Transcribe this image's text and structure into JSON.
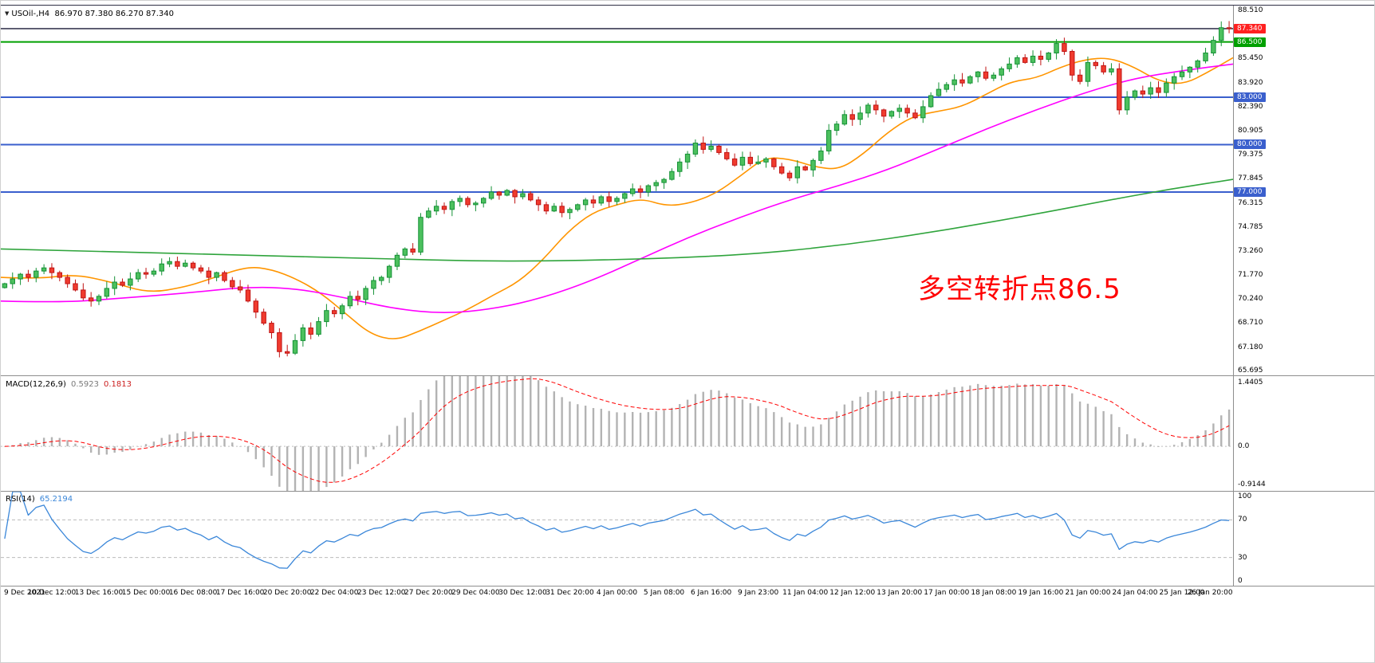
{
  "header": {
    "symbol": "USOil-,H4",
    "ohlc": "86.970 87.380 86.270 87.340"
  },
  "annotation": {
    "text": "多空转折点86.5",
    "color": "#ff0000"
  },
  "colors": {
    "up_fill": "#4cc05e",
    "up_stroke": "#149135",
    "down_fill": "#f03b2e",
    "down_stroke": "#c01414",
    "macd_hist": "#b3b3b3",
    "macd_signal": "#ff0000",
    "rsi_line": "#3b87d9",
    "level_dash": "#bbbbbb",
    "axis_text": "#000000"
  },
  "chart_data": {
    "type": "candlestick",
    "symbol": "USOil-",
    "timeframe": "H4",
    "ohlc_current": {
      "open": 86.97,
      "high": 87.38,
      "low": 86.27,
      "close": 87.34
    },
    "price_range": [
      65.4,
      88.8
    ],
    "price_ticks": [
      "88.510",
      "85.450",
      "83.920",
      "82.390",
      "80.905",
      "79.375",
      "77.845",
      "76.315",
      "74.785",
      "73.260",
      "71.770",
      "70.240",
      "68.710",
      "67.180",
      "65.695"
    ],
    "price_lines": [
      {
        "price": 87.34,
        "label": "87.340",
        "line_color": "#3c3c55",
        "badge_color": "#ff2020",
        "width": 1.6
      },
      {
        "price": 86.5,
        "label": "86.500",
        "line_color": "#00a000",
        "badge_color": "#00a000",
        "width": 2
      },
      {
        "price": 83.0,
        "label": "83.000",
        "line_color": "#3a5fcd",
        "badge_color": "#3a5fcd",
        "width": 2
      },
      {
        "price": 80.0,
        "label": "80.000",
        "line_color": "#3a5fcd",
        "badge_color": "#3a5fcd",
        "width": 2
      },
      {
        "price": 77.0,
        "label": "77.000",
        "line_color": "#3a5fcd",
        "badge_color": "#3a5fcd",
        "width": 2
      }
    ],
    "closes": [
      71.2,
      71.5,
      71.8,
      71.6,
      72.0,
      72.2,
      71.9,
      71.6,
      71.2,
      70.8,
      70.3,
      70.1,
      70.4,
      70.9,
      71.3,
      71.1,
      71.5,
      71.9,
      71.8,
      72.0,
      72.45,
      72.6,
      72.3,
      72.5,
      72.2,
      72.0,
      71.6,
      71.9,
      71.4,
      71.0,
      70.8,
      70.1,
      69.4,
      68.7,
      68.1,
      66.9,
      66.8,
      67.6,
      68.4,
      68.0,
      68.8,
      69.5,
      69.3,
      69.8,
      70.4,
      70.2,
      70.9,
      71.4,
      71.6,
      72.3,
      73.0,
      73.4,
      73.2,
      75.4,
      75.8,
      76.1,
      75.9,
      76.4,
      76.6,
      76.2,
      76.3,
      76.6,
      77.0,
      76.8,
      77.1,
      76.7,
      76.9,
      76.5,
      76.2,
      75.8,
      76.1,
      75.7,
      75.9,
      76.2,
      76.5,
      76.3,
      76.7,
      76.4,
      76.6,
      76.9,
      77.2,
      77.0,
      77.4,
      77.6,
      77.8,
      78.3,
      78.9,
      79.4,
      80.1,
      79.7,
      79.9,
      79.5,
      79.1,
      78.7,
      79.2,
      78.8,
      78.9,
      79.1,
      78.6,
      78.2,
      77.9,
      78.6,
      78.4,
      79.0,
      79.6,
      80.9,
      81.3,
      81.9,
      81.6,
      82.0,
      82.5,
      82.2,
      81.8,
      82.1,
      82.3,
      82.0,
      81.7,
      82.4,
      83.1,
      83.5,
      83.8,
      84.1,
      83.9,
      84.3,
      84.6,
      84.2,
      84.4,
      84.8,
      85.1,
      85.5,
      85.2,
      85.6,
      85.4,
      85.8,
      86.4,
      85.9,
      84.4,
      84.0,
      85.2,
      85.0,
      84.6,
      84.8,
      82.2,
      83.0,
      83.4,
      83.2,
      83.6,
      83.3,
      83.9,
      84.3,
      84.6,
      84.9,
      85.3,
      85.8,
      86.6,
      87.4,
      87.34
    ],
    "ma_lines": [
      {
        "name": "ma-fast",
        "color": "#ff9500",
        "points": [
          [
            0,
            71.6
          ],
          [
            0.03,
            71.5
          ],
          [
            0.06,
            71.8
          ],
          [
            0.09,
            71.3
          ],
          [
            0.12,
            70.6
          ],
          [
            0.15,
            71.0
          ],
          [
            0.17,
            71.5
          ],
          [
            0.2,
            72.3
          ],
          [
            0.22,
            72.1
          ],
          [
            0.24,
            71.5
          ],
          [
            0.26,
            70.6
          ],
          [
            0.28,
            69.3
          ],
          [
            0.3,
            68.0
          ],
          [
            0.32,
            67.6
          ],
          [
            0.34,
            68.2
          ],
          [
            0.36,
            68.9
          ],
          [
            0.38,
            69.6
          ],
          [
            0.4,
            70.5
          ],
          [
            0.42,
            71.3
          ],
          [
            0.44,
            72.7
          ],
          [
            0.46,
            74.5
          ],
          [
            0.48,
            75.7
          ],
          [
            0.5,
            76.2
          ],
          [
            0.52,
            76.6
          ],
          [
            0.54,
            76.1
          ],
          [
            0.56,
            76.3
          ],
          [
            0.58,
            76.9
          ],
          [
            0.6,
            78.0
          ],
          [
            0.62,
            79.2
          ],
          [
            0.64,
            79.1
          ],
          [
            0.66,
            78.6
          ],
          [
            0.68,
            78.4
          ],
          [
            0.7,
            79.4
          ],
          [
            0.72,
            80.8
          ],
          [
            0.74,
            81.8
          ],
          [
            0.76,
            82.1
          ],
          [
            0.78,
            82.4
          ],
          [
            0.8,
            83.2
          ],
          [
            0.82,
            84.0
          ],
          [
            0.84,
            84.2
          ],
          [
            0.86,
            84.9
          ],
          [
            0.88,
            85.4
          ],
          [
            0.9,
            85.5
          ],
          [
            0.92,
            84.9
          ],
          [
            0.94,
            84.0
          ],
          [
            0.96,
            83.8
          ],
          [
            0.98,
            84.6
          ],
          [
            1,
            85.5
          ]
        ]
      },
      {
        "name": "ma-mid",
        "color": "#ff00ff",
        "points": [
          [
            0,
            70.1
          ],
          [
            0.05,
            70.0
          ],
          [
            0.1,
            70.3
          ],
          [
            0.15,
            70.6
          ],
          [
            0.2,
            71.0
          ],
          [
            0.24,
            70.9
          ],
          [
            0.28,
            70.3
          ],
          [
            0.32,
            69.6
          ],
          [
            0.36,
            69.3
          ],
          [
            0.4,
            69.6
          ],
          [
            0.44,
            70.3
          ],
          [
            0.48,
            71.4
          ],
          [
            0.52,
            72.8
          ],
          [
            0.56,
            74.2
          ],
          [
            0.6,
            75.4
          ],
          [
            0.64,
            76.5
          ],
          [
            0.68,
            77.4
          ],
          [
            0.72,
            78.4
          ],
          [
            0.76,
            79.7
          ],
          [
            0.8,
            81.0
          ],
          [
            0.84,
            82.2
          ],
          [
            0.88,
            83.3
          ],
          [
            0.92,
            84.2
          ],
          [
            0.96,
            84.7
          ],
          [
            1,
            85.1
          ]
        ]
      },
      {
        "name": "ma-slow",
        "color": "#2fa43c",
        "points": [
          [
            0,
            73.4
          ],
          [
            0.1,
            73.2
          ],
          [
            0.2,
            73.0
          ],
          [
            0.3,
            72.8
          ],
          [
            0.4,
            72.6
          ],
          [
            0.5,
            72.7
          ],
          [
            0.6,
            73.0
          ],
          [
            0.68,
            73.6
          ],
          [
            0.76,
            74.5
          ],
          [
            0.84,
            75.6
          ],
          [
            0.9,
            76.5
          ],
          [
            0.95,
            77.2
          ],
          [
            1,
            77.8
          ]
        ]
      }
    ],
    "x_labels": [
      "9 Dec 2021",
      "10 Dec 12:00",
      "13 Dec 16:00",
      "15 Dec 00:00",
      "16 Dec 08:00",
      "17 Dec 16:00",
      "20 Dec 20:00",
      "22 Dec 04:00",
      "23 Dec 12:00",
      "27 Dec 20:00",
      "29 Dec 04:00",
      "30 Dec 12:00",
      "31 Dec 20:00",
      "4 Jan 00:00",
      "5 Jan 08:00",
      "6 Jan 16:00",
      "9 Jan 23:00",
      "11 Jan 04:00",
      "12 Jan 12:00",
      "13 Jan 20:00",
      "17 Jan 00:00",
      "18 Jan 08:00",
      "19 Jan 16:00",
      "21 Jan 00:00",
      "24 Jan 04:00",
      "25 Jan 12:00",
      "26 Jan 20:00"
    ],
    "macd": {
      "name": "MACD(12,26,9)",
      "main": "0.5923",
      "signal": "0.1813",
      "fast": 12,
      "slow": 26,
      "signal_period": 9,
      "axis_max": 1.4405,
      "axis_min": -0.9144,
      "axis_labels": [
        "1.4405",
        "0.0",
        "-0.9144"
      ]
    },
    "rsi": {
      "name": "RSI(14)",
      "value": "65.2194",
      "period": 14,
      "levels": [
        70,
        30
      ],
      "axis_labels": [
        "100",
        "70",
        "30",
        "0"
      ]
    }
  }
}
